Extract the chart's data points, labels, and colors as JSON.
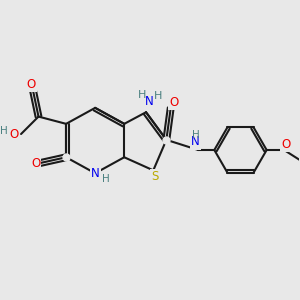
{
  "bg_color": "#e8e8e8",
  "bond_color": "#1a1a1a",
  "bond_width": 1.5,
  "atom_colors": {
    "H": "#4a8080",
    "N": "#0000ee",
    "O": "#ee0000",
    "S": "#bbaa00"
  },
  "font_size": 8.5
}
